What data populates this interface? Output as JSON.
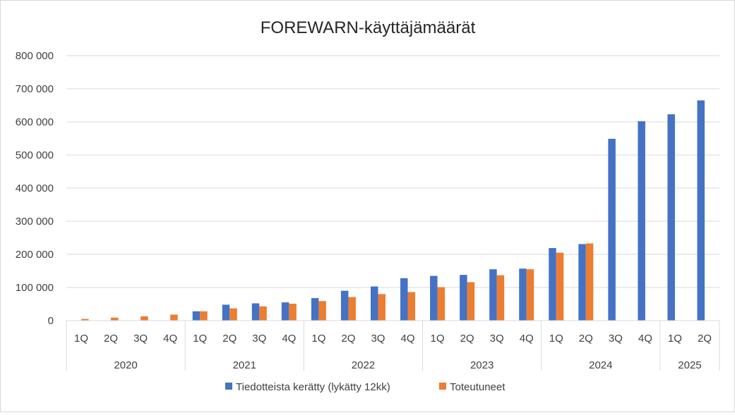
{
  "chart_data": {
    "type": "bar",
    "title": "FOREWARN-käyttäjämäärät",
    "ylim": [
      0,
      800000
    ],
    "yticks": [
      0,
      100000,
      200000,
      300000,
      400000,
      500000,
      600000,
      700000,
      800000
    ],
    "ytick_labels": [
      "0",
      "100 000",
      "200 000",
      "300 000",
      "400 000",
      "500 000",
      "600 000",
      "700 000",
      "800 000"
    ],
    "grid": true,
    "legend_position": "bottom",
    "categories": [
      {
        "year": "2020",
        "quarter": "1Q"
      },
      {
        "year": "2020",
        "quarter": "2Q"
      },
      {
        "year": "2020",
        "quarter": "3Q"
      },
      {
        "year": "2020",
        "quarter": "4Q"
      },
      {
        "year": "2021",
        "quarter": "1Q"
      },
      {
        "year": "2021",
        "quarter": "2Q"
      },
      {
        "year": "2021",
        "quarter": "3Q"
      },
      {
        "year": "2021",
        "quarter": "4Q"
      },
      {
        "year": "2022",
        "quarter": "1Q"
      },
      {
        "year": "2022",
        "quarter": "2Q"
      },
      {
        "year": "2022",
        "quarter": "3Q"
      },
      {
        "year": "2022",
        "quarter": "4Q"
      },
      {
        "year": "2023",
        "quarter": "1Q"
      },
      {
        "year": "2023",
        "quarter": "2Q"
      },
      {
        "year": "2023",
        "quarter": "3Q"
      },
      {
        "year": "2023",
        "quarter": "4Q"
      },
      {
        "year": "2024",
        "quarter": "1Q"
      },
      {
        "year": "2024",
        "quarter": "2Q"
      },
      {
        "year": "2024",
        "quarter": "3Q"
      },
      {
        "year": "2024",
        "quarter": "4Q"
      },
      {
        "year": "2025",
        "quarter": "1Q"
      },
      {
        "year": "2025",
        "quarter": "2Q"
      }
    ],
    "years": [
      "2020",
      "2021",
      "2022",
      "2023",
      "2024",
      "2025"
    ],
    "series": [
      {
        "name": "Tiedotteista kerätty (lykätty 12kk)",
        "color": "#4472c4",
        "values": [
          null,
          null,
          null,
          null,
          28000,
          48000,
          52000,
          55000,
          68000,
          90000,
          103000,
          128000,
          135000,
          138000,
          155000,
          157000,
          219000,
          231000,
          549000,
          602000,
          623000,
          665000
        ]
      },
      {
        "name": "Toteutuneet",
        "color": "#ed7d31",
        "values": [
          5000,
          9000,
          13000,
          18000,
          28000,
          37000,
          43000,
          51000,
          59000,
          71000,
          80000,
          86000,
          101000,
          116000,
          137000,
          155000,
          205000,
          233000,
          null,
          null,
          null,
          null
        ]
      }
    ]
  }
}
